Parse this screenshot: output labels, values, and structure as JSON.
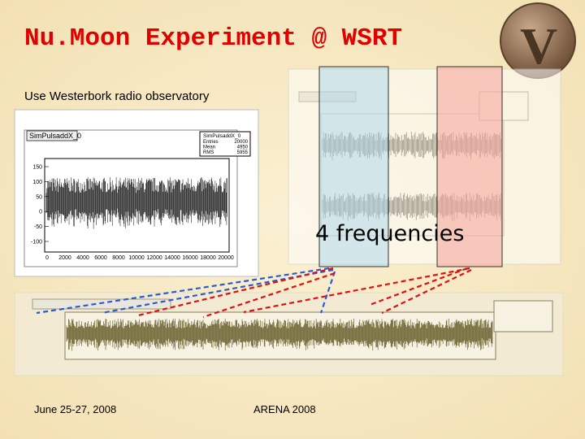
{
  "title": "Nu.Moon Experiment @ WSRT",
  "subtitle": "Use Westerbork radio observatory",
  "annotation": "4 frequencies",
  "plot": {
    "title": "SimPulsaddX_0",
    "stats_title": "SimPulsaddX_0",
    "stats": [
      [
        "Entries",
        "20000"
      ],
      [
        "Mean",
        "4950"
      ],
      [
        "RMS",
        "5955"
      ]
    ],
    "yticks": [
      "150",
      "100",
      "50",
      "0",
      "-50",
      "-100"
    ],
    "xticks": [
      "0",
      "2000",
      "4000",
      "6000",
      "8000",
      "10000",
      "12000",
      "14000",
      "16000",
      "18000",
      "20000"
    ]
  },
  "footer": {
    "date": "June 25-27, 2008",
    "event": "ARENA 2008"
  }
}
